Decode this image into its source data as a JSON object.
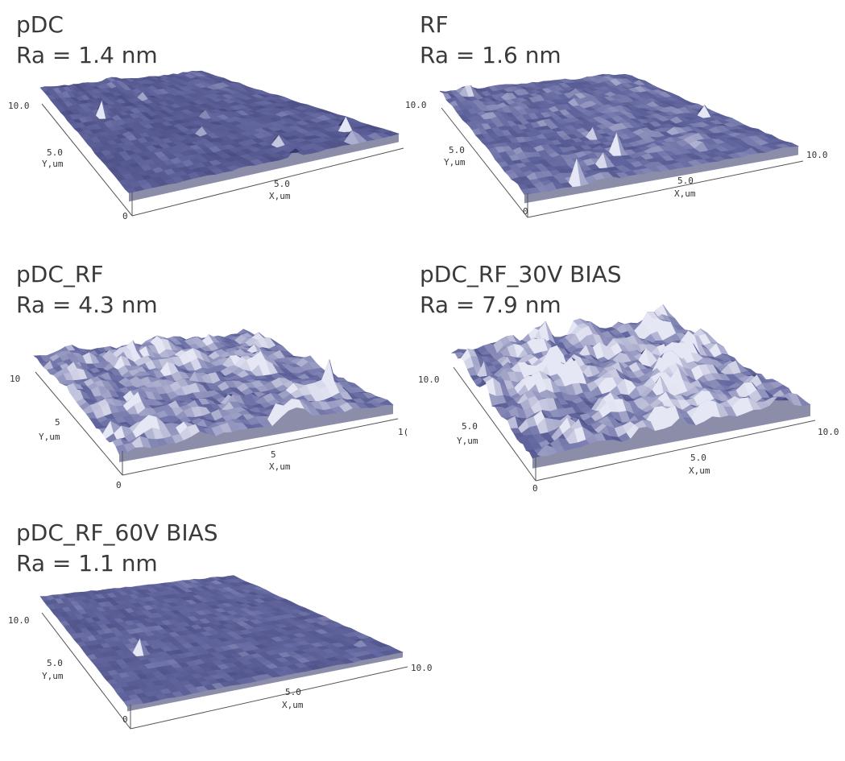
{
  "colors": {
    "surface_dark": "#2d2f63",
    "surface_mid": "#6468a0",
    "surface_light": "#e6e7f4",
    "axis": "#555555",
    "text": "#3a3a3a"
  },
  "panels": [
    {
      "title": "pDC",
      "ra": "Ra = 1.4 nm",
      "ticks": {
        "y_max": "10.0",
        "y_mid": "5.0",
        "y_label": "Y,um",
        "x_mid": "5.0",
        "x_label": "X,um",
        "origin": "0",
        "x_max": ""
      },
      "texture": {
        "roughness": 0.2,
        "peaks": 0.9,
        "brightness": 0.15
      }
    },
    {
      "title": "RF",
      "ra": "Ra = 1.6 nm",
      "ticks": {
        "y_max": "10.0",
        "y_mid": "5.0",
        "y_label": "Y,um",
        "x_mid": "5.0",
        "x_label": "X,um",
        "origin": "0",
        "x_max": "10.0"
      },
      "texture": {
        "roughness": 0.35,
        "peaks": 0.8,
        "brightness": 0.45
      }
    },
    {
      "title": "pDC_RF",
      "ra": "Ra = 4.3 nm",
      "ticks": {
        "y_max": "10",
        "y_mid": "5",
        "y_label": "Y,um",
        "x_mid": "5",
        "x_label": "X,um",
        "origin": "0",
        "x_max": "1("
      },
      "texture": {
        "roughness": 0.75,
        "peaks": 0.3,
        "brightness": 0.55
      }
    },
    {
      "title": "pDC_RF_30V BIAS",
      "ra": "Ra = 7.9 nm",
      "ticks": {
        "y_max": "10.0",
        "y_mid": "5.0",
        "y_label": "Y,um",
        "x_mid": "5.0",
        "x_label": "X,um",
        "origin": "0",
        "x_max": "10.0"
      },
      "texture": {
        "roughness": 1.0,
        "peaks": 0.2,
        "brightness": 0.5
      }
    },
    {
      "title": "pDC_RF_60V BIAS",
      "ra": "Ra = 1.1 nm",
      "ticks": {
        "y_max": "10.0",
        "y_mid": "5.0",
        "y_label": "Y,um",
        "x_mid": "5.0",
        "x_label": "X,um",
        "origin": "0",
        "x_max": "10.0"
      },
      "texture": {
        "roughness": 0.15,
        "peaks": 0.1,
        "brightness": 0.3
      }
    }
  ]
}
